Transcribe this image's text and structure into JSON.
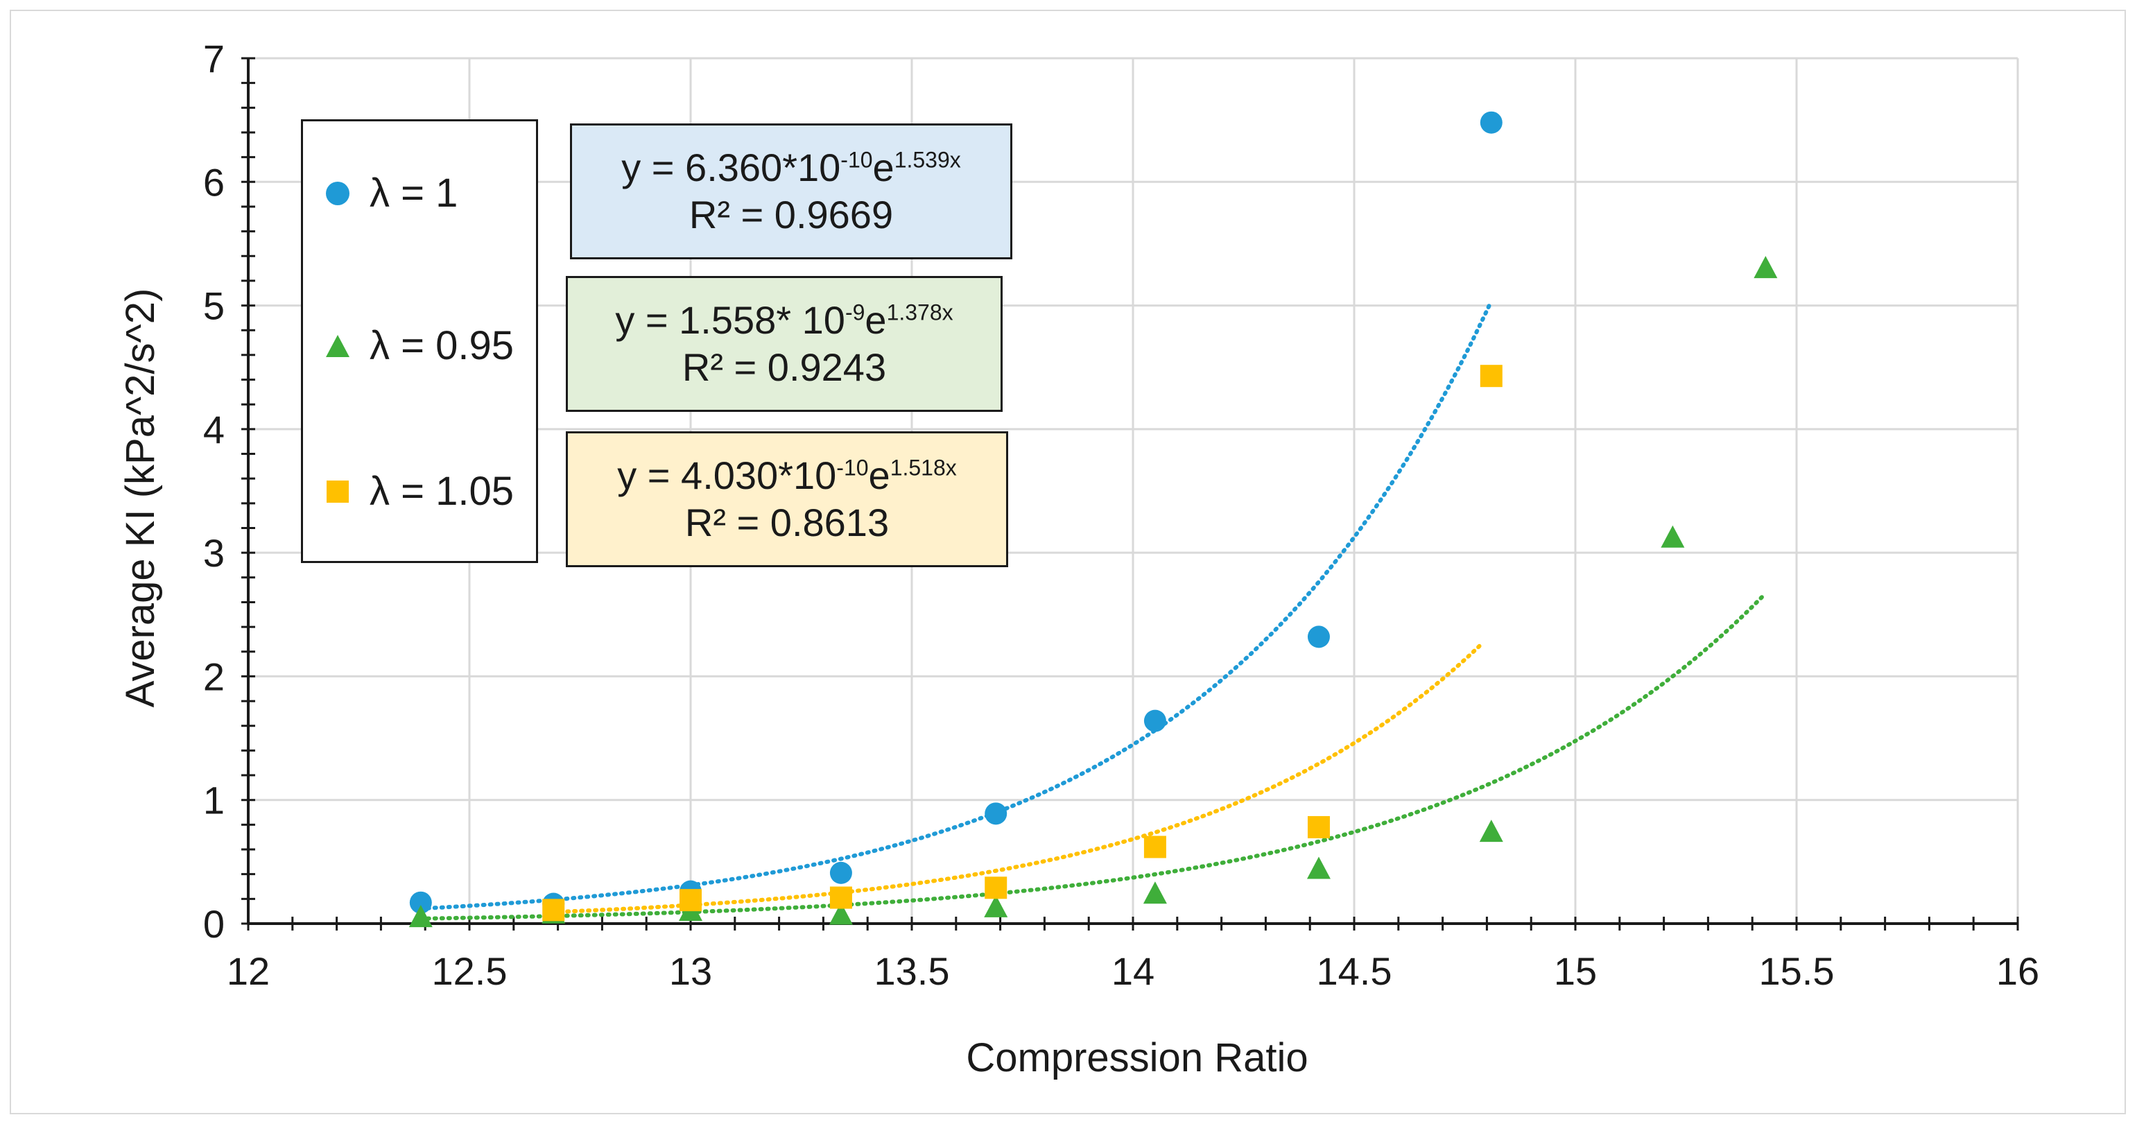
{
  "chart_data": {
    "type": "scatter",
    "title": "",
    "xlabel": "Compression Ratio",
    "ylabel": "Average KI (kPa^2/s^2)",
    "xlim": [
      12,
      16
    ],
    "ylim": [
      0,
      7
    ],
    "x_ticks": [
      "12",
      "12.5",
      "13",
      "13.5",
      "14",
      "14.5",
      "15",
      "15.5",
      "16"
    ],
    "y_ticks": [
      "0",
      "1",
      "2",
      "3",
      "4",
      "5",
      "6",
      "7"
    ],
    "grid": true,
    "legend_position": "top-left",
    "series": [
      {
        "name": "λ = 1",
        "marker": "circle",
        "color": "#1f9ad6",
        "x": [
          12.39,
          12.69,
          13.0,
          13.34,
          13.69,
          14.05,
          14.42,
          14.81
        ],
        "y": [
          0.17,
          0.16,
          0.26,
          0.41,
          0.89,
          1.64,
          2.32,
          6.48
        ],
        "trendline": {
          "a": 6.36e-10,
          "b": 1.539,
          "x_range": [
            12.39,
            14.81
          ]
        },
        "equation": {
          "prefix": "y = 6.360*10",
          "exp": "-10",
          "mid": "e",
          "exp2": "1.539x"
        },
        "r2": "R² = 0.9669"
      },
      {
        "name": "λ = 0.95",
        "marker": "triangle",
        "color": "#3fae3a",
        "x": [
          12.39,
          12.69,
          13.0,
          13.34,
          13.69,
          14.05,
          14.42,
          14.81,
          15.22,
          15.43
        ],
        "y": [
          0.05,
          0.08,
          0.1,
          0.07,
          0.13,
          0.24,
          0.44,
          0.74,
          3.12,
          5.3
        ],
        "trendline": {
          "a": 1.558e-09,
          "b": 1.378,
          "x_range": [
            12.39,
            15.43
          ]
        },
        "equation": {
          "prefix": "y = 1.558* 10",
          "exp": "-9",
          "mid": "e",
          "exp2": "1.378x"
        },
        "r2": "R² = 0.9243"
      },
      {
        "name": "λ = 1.05",
        "marker": "square",
        "color": "#ffc000",
        "x": [
          12.69,
          13.0,
          13.34,
          13.69,
          14.05,
          14.42,
          14.81
        ],
        "y": [
          0.11,
          0.19,
          0.21,
          0.29,
          0.62,
          0.78,
          4.43
        ],
        "trendline": {
          "a": 4.03e-10,
          "b": 1.518,
          "x_range": [
            12.69,
            14.79
          ]
        },
        "equation": {
          "prefix": "y = 4.030*10",
          "exp": "-10",
          "mid": "e",
          "exp2": "1.518x"
        },
        "r2": "R² = 0.8613"
      }
    ]
  },
  "equation_box_colors": [
    "#dae9f6",
    "#e2efd9",
    "#fff1cc"
  ]
}
